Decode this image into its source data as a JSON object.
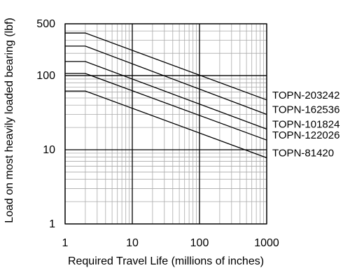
{
  "chart_data": {
    "type": "line",
    "x_scale": "log",
    "y_scale": "log",
    "xlim": [
      1,
      1000
    ],
    "ylim": [
      1,
      500
    ],
    "grid": true,
    "xlabel": "Required Travel Life (millions of inches)",
    "ylabel": "Load on most heavily loaded bearing (lbf)",
    "x_ticks": [
      "1",
      "10",
      "100",
      "1000"
    ],
    "y_ticks": [
      "1",
      "10",
      "100",
      "500"
    ],
    "x_tick_values": [
      1,
      10,
      100,
      1000
    ],
    "y_tick_values": [
      1,
      10,
      100,
      500
    ],
    "series": [
      {
        "name": "TOPN-203242",
        "points": [
          [
            1,
            375
          ],
          [
            2,
            375
          ],
          [
            1000,
            47
          ]
        ]
      },
      {
        "name": "TOPN-162536",
        "points": [
          [
            1,
            250
          ],
          [
            2,
            250
          ],
          [
            1000,
            30
          ]
        ]
      },
      {
        "name": "TOPN-101824",
        "points": [
          [
            1,
            155
          ],
          [
            2,
            155
          ],
          [
            1000,
            19
          ]
        ]
      },
      {
        "name": "TOPN-122026",
        "points": [
          [
            1,
            107
          ],
          [
            2,
            107
          ],
          [
            1000,
            13.5
          ]
        ]
      },
      {
        "name": "TOPN-81420",
        "points": [
          [
            1,
            62
          ],
          [
            2,
            62
          ],
          [
            1000,
            7.8
          ]
        ]
      }
    ],
    "colors": {
      "line": "#000000",
      "grid_major": "#000000",
      "grid_minor": "#aaaaaa"
    }
  }
}
